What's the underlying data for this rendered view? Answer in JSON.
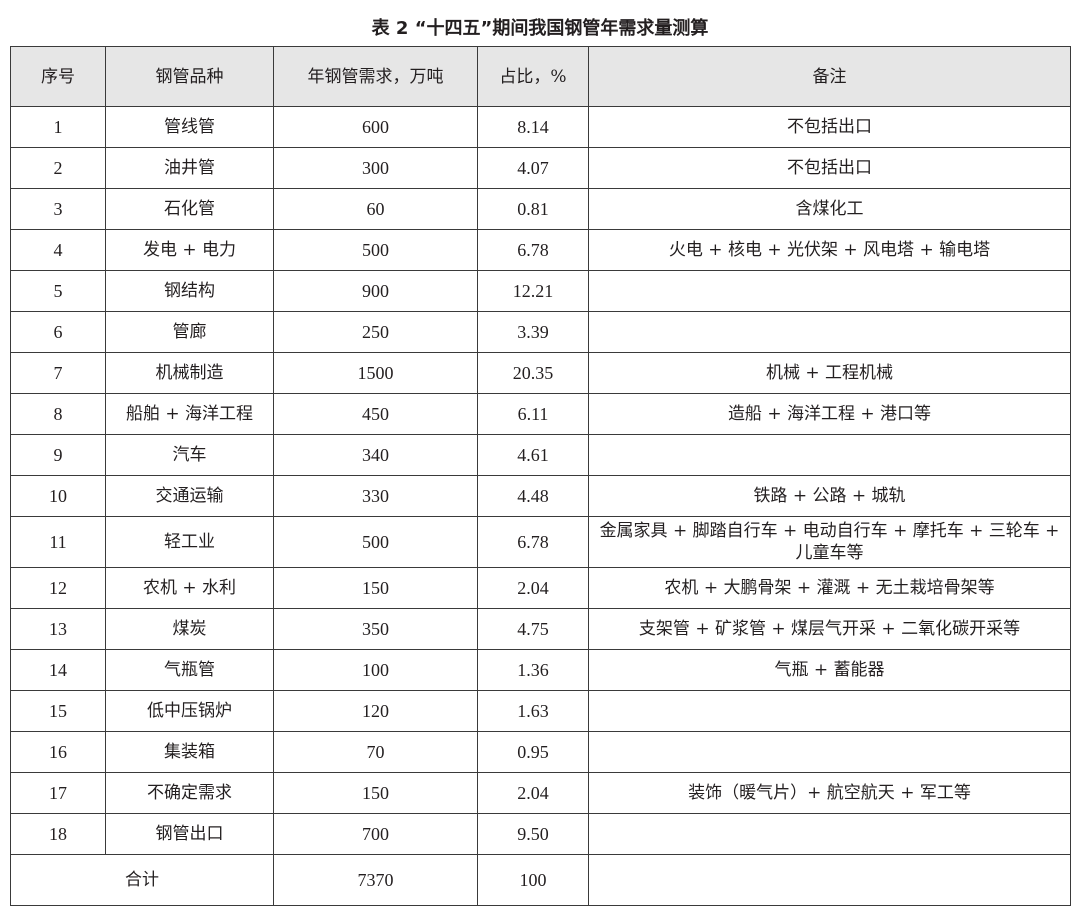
{
  "title": "表 2  “十四五”期间我国钢管年需求量测算",
  "headers": [
    "序号",
    "钢管品种",
    "年钢管需求，万吨",
    "占比，%",
    "备注"
  ],
  "rows": [
    [
      "1",
      "管线管",
      "600",
      "8.14",
      "不包括出口"
    ],
    [
      "2",
      "油井管",
      "300",
      "4.07",
      "不包括出口"
    ],
    [
      "3",
      "石化管",
      "60",
      "0.81",
      "含煤化工"
    ],
    [
      "4",
      "发电 + 电力",
      "500",
      "6.78",
      "火电 + 核电 + 光伏架 + 风电塔 + 输电塔"
    ],
    [
      "5",
      "钢结构",
      "900",
      "12.21",
      ""
    ],
    [
      "6",
      "管廊",
      "250",
      "3.39",
      ""
    ],
    [
      "7",
      "机械制造",
      "1500",
      "20.35",
      "机械 + 工程机械"
    ],
    [
      "8",
      "船舶 + 海洋工程",
      "450",
      "6.11",
      "造船 + 海洋工程 + 港口等"
    ],
    [
      "9",
      "汽车",
      "340",
      "4.61",
      ""
    ],
    [
      "10",
      "交通运输",
      "330",
      "4.48",
      "铁路 + 公路 + 城轨"
    ],
    [
      "11",
      "轻工业",
      "500",
      "6.78",
      "金属家具 + 脚踏自行车 + 电动自行车 + 摩托车 + 三轮车 + 儿童车等"
    ],
    [
      "12",
      "农机 + 水利",
      "150",
      "2.04",
      "农机 + 大鹏骨架 + 灌溉 + 无土栽培骨架等"
    ],
    [
      "13",
      "煤炭",
      "350",
      "4.75",
      "支架管 + 矿浆管 + 煤层气开采 + 二氧化碳开采等"
    ],
    [
      "14",
      "气瓶管",
      "100",
      "1.36",
      "气瓶 + 蓄能器"
    ],
    [
      "15",
      "低中压锅炉",
      "120",
      "1.63",
      ""
    ],
    [
      "16",
      "集装箱",
      "70",
      "0.95",
      ""
    ],
    [
      "17",
      "不确定需求",
      "150",
      "2.04",
      "装饰（暖气片）+ 航空航天 + 军工等"
    ],
    [
      "18",
      "钢管出口",
      "700",
      "9.50",
      ""
    ]
  ],
  "total": {
    "label": "合计",
    "demand": "7370",
    "share": "100",
    "note": ""
  }
}
